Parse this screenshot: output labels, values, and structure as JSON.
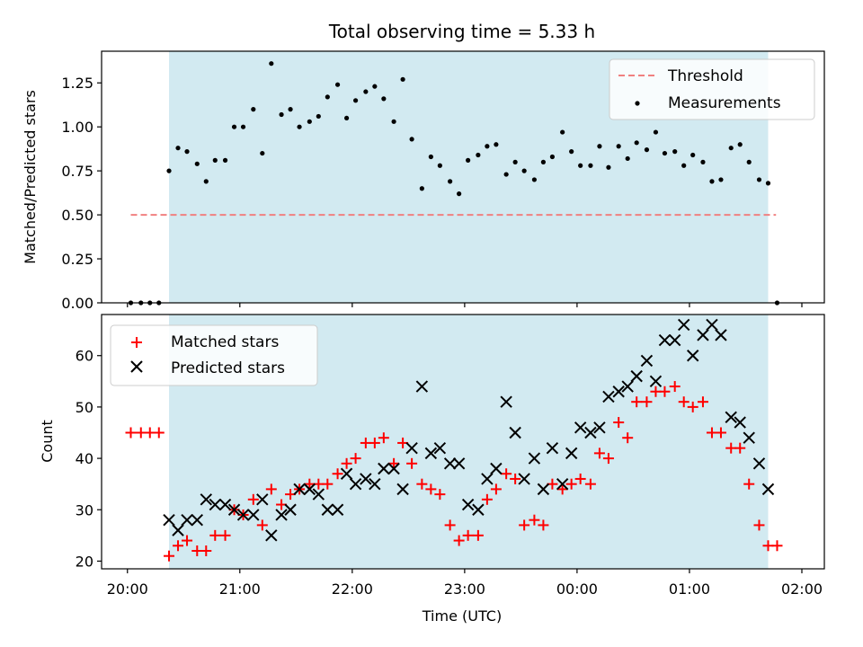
{
  "chart_data": {
    "title": "Total observing time = 5.33 h",
    "colors": {
      "shade": "#add8e6",
      "threshold": "#f08080",
      "measurements": "#000000",
      "matched": "#ff0000",
      "predicted": "#000000"
    },
    "x_axis": {
      "label": "Time (UTC)",
      "range_hours": [
        19.77,
        26.2
      ],
      "ticks": [
        {
          "value": 20,
          "label": "20:00"
        },
        {
          "value": 21,
          "label": "21:00"
        },
        {
          "value": 22,
          "label": "22:00"
        },
        {
          "value": 23,
          "label": "23:00"
        },
        {
          "value": 24,
          "label": "00:00"
        },
        {
          "value": 25,
          "label": "01:00"
        },
        {
          "value": 26,
          "label": "02:00"
        }
      ]
    },
    "shaded_span_hours": [
      20.37,
      25.7
    ],
    "top": {
      "type": "scatter",
      "ylabel": "Matched/Predicted stars",
      "ylim": [
        0,
        1.43
      ],
      "yticks": [
        {
          "value": 0,
          "label": "0.00"
        },
        {
          "value": 0.25,
          "label": "0.25"
        },
        {
          "value": 0.5,
          "label": "0.50"
        },
        {
          "value": 0.75,
          "label": "0.75"
        },
        {
          "value": 1.0,
          "label": "1.00"
        },
        {
          "value": 1.25,
          "label": "1.25"
        }
      ],
      "threshold": {
        "name": "Threshold",
        "value": 0.5,
        "x_range": [
          20.03,
          25.77
        ]
      },
      "legend": {
        "placement": "upper right",
        "entries": [
          "Threshold",
          "Measurements"
        ]
      },
      "series": [
        {
          "name": "Measurements",
          "x": [
            20.03,
            20.12,
            20.2,
            20.28,
            20.37,
            20.45,
            20.53,
            20.62,
            20.7,
            20.78,
            20.87,
            20.95,
            21.03,
            21.12,
            21.2,
            21.28,
            21.37,
            21.45,
            21.53,
            21.62,
            21.7,
            21.78,
            21.87,
            21.95,
            22.03,
            22.12,
            22.2,
            22.28,
            22.37,
            22.45,
            22.53,
            22.62,
            22.7,
            22.78,
            22.87,
            22.95,
            23.03,
            23.12,
            23.2,
            23.28,
            23.37,
            23.45,
            23.53,
            23.62,
            23.7,
            23.78,
            23.87,
            23.95,
            24.03,
            24.12,
            24.2,
            24.28,
            24.37,
            24.45,
            24.53,
            24.62,
            24.7,
            24.78,
            24.87,
            24.95,
            25.03,
            25.12,
            25.2,
            25.28,
            25.37,
            25.45,
            25.53,
            25.62,
            25.7,
            25.78
          ],
          "y": [
            0,
            0,
            0,
            0,
            0.75,
            0.88,
            0.86,
            0.79,
            0.69,
            0.81,
            0.81,
            1.0,
            1.0,
            1.1,
            0.85,
            1.36,
            1.07,
            1.1,
            1.0,
            1.03,
            1.06,
            1.17,
            1.24,
            1.05,
            1.15,
            1.2,
            1.23,
            1.16,
            1.03,
            1.27,
            0.93,
            0.65,
            0.83,
            0.78,
            0.69,
            0.62,
            0.81,
            0.84,
            0.89,
            0.9,
            0.73,
            0.8,
            0.75,
            0.7,
            0.8,
            0.83,
            0.97,
            0.86,
            0.78,
            0.78,
            0.89,
            0.77,
            0.89,
            0.82,
            0.91,
            0.87,
            0.97,
            0.85,
            0.86,
            0.78,
            0.84,
            0.8,
            0.69,
            0.7,
            0.88,
            0.9,
            0.8,
            0.7,
            0.68,
            0
          ]
        }
      ]
    },
    "bottom": {
      "type": "scatter",
      "ylabel": "Count",
      "ylim": [
        18.5,
        68
      ],
      "yticks": [
        {
          "value": 20,
          "label": "20"
        },
        {
          "value": 30,
          "label": "30"
        },
        {
          "value": 40,
          "label": "40"
        },
        {
          "value": 50,
          "label": "50"
        },
        {
          "value": 60,
          "label": "60"
        }
      ],
      "legend": {
        "placement": "upper left",
        "entries": [
          "Matched stars",
          "Predicted stars"
        ]
      },
      "series": [
        {
          "name": "Matched stars",
          "marker": "+",
          "x": [
            20.03,
            20.12,
            20.2,
            20.28,
            20.37,
            20.45,
            20.53,
            20.62,
            20.7,
            20.78,
            20.87,
            20.95,
            21.03,
            21.12,
            21.2,
            21.28,
            21.37,
            21.45,
            21.53,
            21.62,
            21.7,
            21.78,
            21.87,
            21.95,
            22.03,
            22.12,
            22.2,
            22.28,
            22.37,
            22.45,
            22.53,
            22.62,
            22.7,
            22.78,
            22.87,
            22.95,
            23.03,
            23.12,
            23.2,
            23.28,
            23.37,
            23.45,
            23.53,
            23.62,
            23.7,
            23.78,
            23.87,
            23.95,
            24.03,
            24.12,
            24.2,
            24.28,
            24.37,
            24.45,
            24.53,
            24.62,
            24.7,
            24.78,
            24.87,
            24.95,
            25.03,
            25.12,
            25.2,
            25.28,
            25.37,
            25.45,
            25.53,
            25.62,
            25.7,
            25.78
          ],
          "y": [
            45,
            45,
            45,
            45,
            21,
            23,
            24,
            22,
            22,
            25,
            25,
            30,
            29,
            32,
            27,
            34,
            31,
            33,
            34,
            35,
            35,
            35,
            37,
            39,
            40,
            43,
            43,
            44,
            39,
            43,
            39,
            35,
            34,
            33,
            27,
            24,
            25,
            25,
            32,
            34,
            37,
            36,
            27,
            28,
            27,
            35,
            34,
            35,
            36,
            35,
            41,
            40,
            47,
            44,
            51,
            51,
            53,
            53,
            54,
            51,
            50,
            51,
            45,
            45,
            42,
            42,
            35,
            27,
            23,
            23
          ]
        },
        {
          "name": "Predicted stars",
          "marker": "x",
          "x": [
            20.37,
            20.45,
            20.53,
            20.62,
            20.7,
            20.78,
            20.87,
            20.95,
            21.03,
            21.12,
            21.2,
            21.28,
            21.37,
            21.45,
            21.53,
            21.62,
            21.7,
            21.78,
            21.87,
            21.95,
            22.03,
            22.12,
            22.2,
            22.28,
            22.37,
            22.45,
            22.53,
            22.62,
            22.7,
            22.78,
            22.87,
            22.95,
            23.03,
            23.12,
            23.2,
            23.28,
            23.37,
            23.45,
            23.53,
            23.62,
            23.7,
            23.78,
            23.87,
            23.95,
            24.03,
            24.12,
            24.2,
            24.28,
            24.37,
            24.45,
            24.53,
            24.62,
            24.7,
            24.78,
            24.87,
            24.95,
            25.03,
            25.12,
            25.2,
            25.28,
            25.37,
            25.45,
            25.53,
            25.62,
            25.7
          ],
          "y": [
            28,
            26,
            28,
            28,
            32,
            31,
            31,
            30,
            29,
            29,
            32,
            25,
            29,
            30,
            34,
            34,
            33,
            30,
            30,
            37,
            35,
            36,
            35,
            38,
            38,
            34,
            42,
            54,
            41,
            42,
            39,
            39,
            31,
            30,
            36,
            38,
            51,
            45,
            36,
            40,
            34,
            42,
            35,
            41,
            46,
            45,
            46,
            52,
            53,
            54,
            56,
            59,
            55,
            63,
            63,
            66,
            60,
            64,
            66,
            64,
            48,
            47,
            44,
            39,
            34
          ]
        }
      ]
    }
  }
}
